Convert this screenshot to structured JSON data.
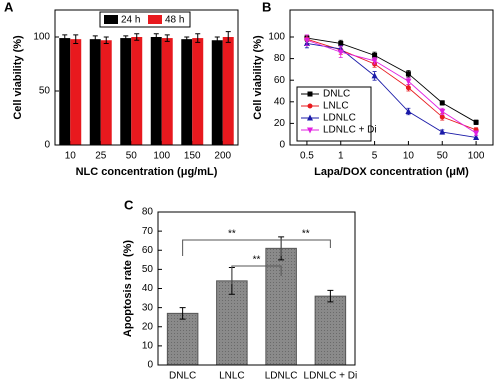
{
  "chart_data": [
    {
      "type": "bar",
      "panel_label": "A",
      "xlabel": "NLC concentration (μg/mL)",
      "ylabel": "Cell viability (%)",
      "categories": [
        "10",
        "25",
        "50",
        "100",
        "150",
        "200"
      ],
      "series": [
        {
          "name": "24 h",
          "color": "#000000",
          "values": [
            99,
            98,
            99,
            100,
            98,
            97
          ],
          "errors": [
            3,
            3,
            2,
            3,
            2,
            3
          ]
        },
        {
          "name": "48 h",
          "color": "#e8191e",
          "values": [
            98,
            97,
            100,
            99,
            99,
            100
          ],
          "errors": [
            4,
            3,
            3,
            3,
            4,
            5
          ]
        }
      ],
      "ylim": [
        0,
        125
      ],
      "yticks": [
        0,
        50,
        100
      ],
      "legend": "top"
    },
    {
      "type": "line",
      "panel_label": "B",
      "xlabel": "Lapa/DOX concentration (μM)",
      "ylabel": "Cell viability (%)",
      "categories": [
        "0.5",
        "1",
        "5",
        "10",
        "50",
        "100"
      ],
      "series": [
        {
          "name": "DNLC",
          "color": "#000000",
          "marker": "square",
          "values": [
            99,
            94,
            83,
            66,
            39,
            21
          ],
          "errors": [
            3,
            3,
            3,
            3,
            2,
            2
          ]
        },
        {
          "name": "LNLC",
          "color": "#e8191e",
          "marker": "circle",
          "values": [
            98,
            88,
            75,
            53,
            26,
            14
          ],
          "errors": [
            4,
            4,
            3,
            3,
            3,
            2
          ]
        },
        {
          "name": "LDNLC",
          "color": "#1a1aa8",
          "marker": "triangle",
          "values": [
            94,
            89,
            64,
            31,
            12,
            7
          ],
          "errors": [
            4,
            3,
            4,
            3,
            2,
            2
          ]
        },
        {
          "name": "LDNLC + Di",
          "color": "#e020e0",
          "marker": "triangle-down",
          "values": [
            97,
            86,
            78,
            59,
            31,
            11
          ],
          "errors": [
            5,
            5,
            3,
            3,
            3,
            2
          ]
        }
      ],
      "ylim": [
        0,
        125
      ],
      "yticks": [
        0,
        20,
        40,
        60,
        80,
        100
      ],
      "legend": "lower left"
    },
    {
      "type": "bar",
      "panel_label": "C",
      "ylabel": "Apoptosis rate (%)",
      "categories": [
        "DNLC",
        "LNLC",
        "LDNLC",
        "LDNLC + Di"
      ],
      "values": [
        27,
        44,
        61,
        36
      ],
      "errors": [
        3,
        7,
        6,
        3
      ],
      "color": "#8a8a8a",
      "ylim": [
        0,
        80
      ],
      "yticks": [
        0,
        10,
        20,
        30,
        40,
        50,
        60,
        70,
        80
      ],
      "annotations": [
        "**",
        "**",
        "**"
      ]
    }
  ]
}
